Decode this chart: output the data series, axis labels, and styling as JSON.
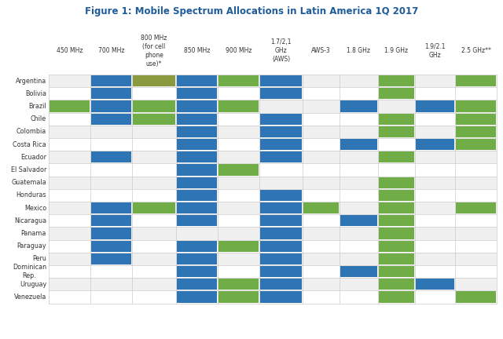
{
  "title": "Figure 1: Mobile Spectrum Allocations in Latin America 1Q 2017",
  "title_color": "#1F5C99",
  "blue": "#2E75B6",
  "green": "#70AD47",
  "olive": "#8B9A3E",
  "bg_color": "#FFFFFF",
  "grid_color": "#CCCCCC",
  "columns": [
    "450 MHz",
    "700 MHz",
    "800 MHz\n(for cell\nphone\nuse)*",
    "850 MHz",
    "900 MHz",
    "1.7/2,1\nGHz\n(AWS)",
    "AWS-3",
    "1.8 GHz",
    "1.9 GHz",
    "1.9/2.1\nGHz",
    "2.5 GHz**"
  ],
  "countries": [
    "Argentina",
    "Bolivia",
    "Brazil",
    "Chile",
    "Colombia",
    "Costa Rica",
    "Ecuador",
    "El Salvador",
    "Guatemala",
    "Honduras",
    "Mexico",
    "Nicaragua",
    "Panama",
    "Paraguay",
    "Peru",
    "Dominican\nRep.",
    "Uruguay",
    "Venezuela"
  ],
  "cells": {
    "Argentina": [
      null,
      "blue",
      "olive",
      "blue",
      "green",
      "blue",
      null,
      null,
      "green",
      null,
      "green"
    ],
    "Bolivia": [
      null,
      "blue",
      null,
      "blue",
      null,
      "blue",
      null,
      null,
      "green",
      null,
      null
    ],
    "Brazil": [
      "green",
      "blue",
      "green",
      "blue",
      "green",
      null,
      null,
      "blue",
      null,
      "blue",
      "green"
    ],
    "Chile": [
      null,
      "blue",
      "green",
      "blue",
      null,
      "blue",
      null,
      null,
      "green",
      null,
      "green"
    ],
    "Colombia": [
      null,
      null,
      null,
      "blue",
      null,
      "blue",
      null,
      null,
      "green",
      null,
      "green"
    ],
    "Costa Rica": [
      null,
      null,
      null,
      "blue",
      null,
      "blue",
      null,
      "blue",
      null,
      "blue",
      "green"
    ],
    "Ecuador": [
      null,
      "blue",
      null,
      "blue",
      null,
      "blue",
      null,
      null,
      "green",
      null,
      null
    ],
    "El Salvador": [
      null,
      null,
      null,
      "blue",
      "green",
      null,
      null,
      null,
      null,
      null,
      null
    ],
    "Guatemala": [
      null,
      null,
      null,
      "blue",
      null,
      null,
      null,
      null,
      "green",
      null,
      null
    ],
    "Honduras": [
      null,
      null,
      null,
      "blue",
      null,
      "blue",
      null,
      null,
      "green",
      null,
      null
    ],
    "Mexico": [
      null,
      "blue",
      "green",
      "blue",
      null,
      "blue",
      "green",
      null,
      "green",
      null,
      "green"
    ],
    "Nicaragua": [
      null,
      "blue",
      null,
      "blue",
      null,
      "blue",
      null,
      "blue",
      "green",
      null,
      null
    ],
    "Panama": [
      null,
      "blue",
      null,
      null,
      null,
      "blue",
      null,
      null,
      "green",
      null,
      null
    ],
    "Paraguay": [
      null,
      "blue",
      null,
      "blue",
      "green",
      "blue",
      null,
      null,
      "green",
      null,
      null
    ],
    "Peru": [
      null,
      "blue",
      null,
      "blue",
      null,
      "blue",
      null,
      null,
      "green",
      null,
      null
    ],
    "Dominican\nRep.": [
      null,
      null,
      null,
      "blue",
      null,
      "blue",
      null,
      "blue",
      "green",
      null,
      null
    ],
    "Uruguay": [
      null,
      null,
      null,
      "blue",
      "green",
      "blue",
      null,
      null,
      "green",
      "blue",
      null
    ],
    "Venezuela": [
      null,
      null,
      null,
      "blue",
      "green",
      "blue",
      null,
      null,
      "green",
      null,
      "green"
    ]
  }
}
